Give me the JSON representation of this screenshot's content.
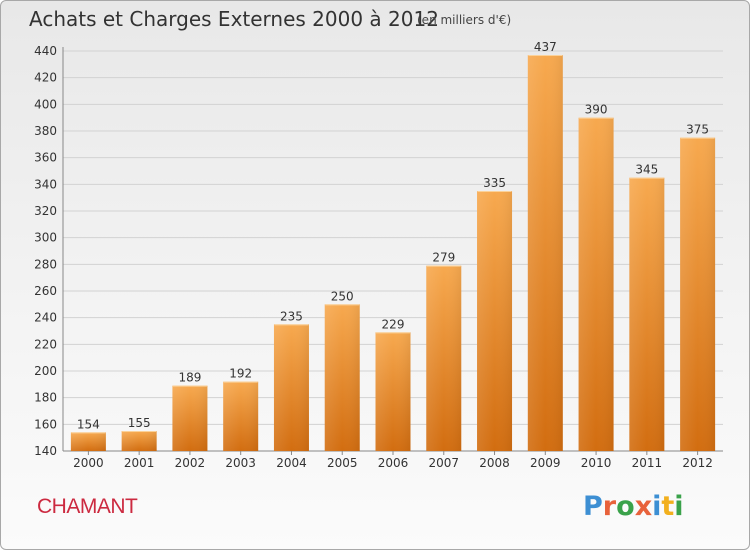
{
  "header": {
    "title": "Achats et Charges Externes 2000 à 2012",
    "subtitle": "(en milliers d'€)"
  },
  "footer": {
    "commune": "CHAMANT",
    "logo_text": "Proxiti"
  },
  "colors": {
    "bar_top": "#f7a94f",
    "bar_bottom": "#d26d10",
    "grid": "#d2d2d2",
    "commune": "#cc2a40",
    "logo": [
      "#3d8fd3",
      "#e8623b",
      "#3aa24a",
      "#e8623b",
      "#3d8fd3",
      "#f2b01e",
      "#3aa24a"
    ]
  },
  "chart_data": {
    "type": "bar",
    "categories": [
      "2000",
      "2001",
      "2002",
      "2003",
      "2004",
      "2005",
      "2006",
      "2007",
      "2008",
      "2009",
      "2010",
      "2011",
      "2012"
    ],
    "values": [
      154,
      155,
      189,
      192,
      235,
      250,
      229,
      279,
      335,
      437,
      390,
      345,
      375
    ],
    "data_labels": [
      "154",
      "155",
      "189",
      "192",
      "235",
      "250",
      "229",
      "279",
      "335",
      "437",
      "390",
      "345",
      "375"
    ],
    "title": "Achats et Charges Externes 2000 à 2012",
    "xlabel": "",
    "ylabel": "",
    "ylim": [
      140,
      440
    ],
    "yticks": [
      140,
      160,
      180,
      200,
      220,
      240,
      260,
      280,
      300,
      320,
      340,
      360,
      380,
      400,
      420,
      440
    ],
    "grid": true
  }
}
